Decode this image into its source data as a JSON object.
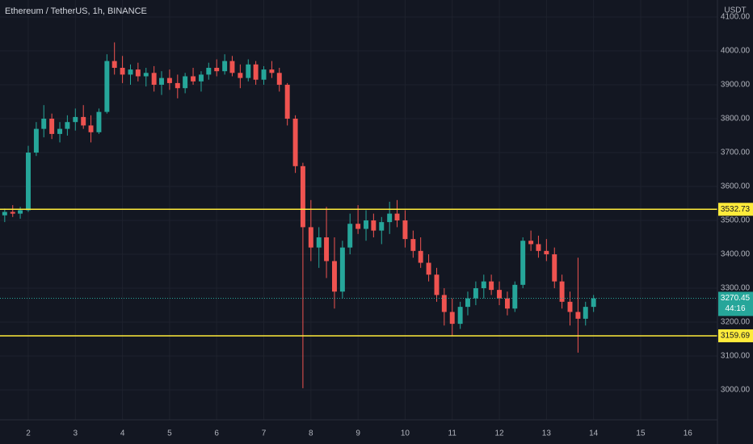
{
  "chart_data": {
    "type": "candlestick",
    "title": "Ethereum / TetherUS, 1h, BINANCE",
    "y_axis_label": "USDT",
    "x": [
      1.5,
      1.67,
      1.83,
      2,
      2.17,
      2.33,
      2.5,
      2.67,
      2.83,
      3,
      3.17,
      3.33,
      3.5,
      3.67,
      3.83,
      4,
      4.17,
      4.33,
      4.5,
      4.67,
      4.83,
      5,
      5.17,
      5.33,
      5.5,
      5.67,
      5.83,
      6,
      6.17,
      6.33,
      6.5,
      6.67,
      6.83,
      7,
      7.17,
      7.33,
      7.5,
      7.67,
      7.83,
      8,
      8.17,
      8.33,
      8.5,
      8.67,
      8.83,
      9,
      9.17,
      9.33,
      9.5,
      9.67,
      9.83,
      10,
      10.17,
      10.33,
      10.5,
      10.67,
      10.83,
      11,
      11.17,
      11.33,
      11.5,
      11.67,
      11.83,
      12,
      12.17,
      12.33,
      12.5,
      12.67,
      12.83,
      13,
      13.17,
      13.33,
      13.5,
      13.67,
      13.83,
      14
    ],
    "open": [
      3515,
      3525,
      3520,
      3530,
      3700,
      3770,
      3800,
      3755,
      3770,
      3790,
      3805,
      3780,
      3760,
      3820,
      3970,
      3950,
      3930,
      3945,
      3925,
      3935,
      3900,
      3920,
      3905,
      3890,
      3925,
      3910,
      3930,
      3950,
      3940,
      3970,
      3935,
      3920,
      3960,
      3915,
      3945,
      3935,
      3900,
      3800,
      3660,
      3480,
      3420,
      3450,
      3380,
      3290,
      3420,
      3490,
      3475,
      3500,
      3470,
      3495,
      3520,
      3500,
      3445,
      3410,
      3375,
      3340,
      3280,
      3230,
      3195,
      3245,
      3270,
      3300,
      3320,
      3295,
      3270,
      3240,
      3310,
      3440,
      3430,
      3410,
      3400,
      3320,
      3260,
      3230,
      3210,
      3245
    ],
    "high": [
      3535,
      3545,
      3540,
      3720,
      3790,
      3840,
      3815,
      3790,
      3810,
      3830,
      3840,
      3810,
      3830,
      3990,
      4025,
      3985,
      3960,
      3965,
      3950,
      3955,
      3940,
      3945,
      3930,
      3935,
      3950,
      3940,
      3965,
      3975,
      3990,
      3985,
      3960,
      3975,
      3970,
      3955,
      3970,
      3950,
      3905,
      3810,
      3670,
      3560,
      3480,
      3540,
      3450,
      3440,
      3520,
      3545,
      3530,
      3520,
      3510,
      3555,
      3560,
      3530,
      3470,
      3450,
      3400,
      3360,
      3300,
      3270,
      3260,
      3290,
      3320,
      3340,
      3340,
      3320,
      3290,
      3320,
      3450,
      3470,
      3455,
      3445,
      3420,
      3340,
      3290,
      3390,
      3260,
      3280
    ],
    "low": [
      3495,
      3510,
      3505,
      3525,
      3690,
      3745,
      3740,
      3730,
      3750,
      3765,
      3770,
      3730,
      3755,
      3815,
      3930,
      3905,
      3900,
      3910,
      3895,
      3880,
      3870,
      3885,
      3860,
      3875,
      3900,
      3880,
      3915,
      3925,
      3930,
      3925,
      3890,
      3910,
      3900,
      3900,
      3920,
      3880,
      3780,
      3640,
      3005,
      3380,
      3360,
      3330,
      3240,
      3270,
      3400,
      3460,
      3440,
      3450,
      3430,
      3460,
      3480,
      3420,
      3390,
      3360,
      3320,
      3260,
      3190,
      3160,
      3180,
      3220,
      3250,
      3270,
      3280,
      3250,
      3220,
      3230,
      3300,
      3410,
      3390,
      3380,
      3300,
      3240,
      3190,
      3110,
      3190,
      3230
    ],
    "close": [
      3525,
      3520,
      3530,
      3700,
      3770,
      3800,
      3755,
      3770,
      3790,
      3805,
      3780,
      3760,
      3820,
      3970,
      3950,
      3930,
      3945,
      3925,
      3935,
      3900,
      3920,
      3905,
      3890,
      3925,
      3910,
      3930,
      3950,
      3940,
      3970,
      3935,
      3920,
      3960,
      3915,
      3945,
      3935,
      3900,
      3800,
      3660,
      3480,
      3420,
      3450,
      3380,
      3290,
      3420,
      3490,
      3475,
      3500,
      3470,
      3495,
      3520,
      3500,
      3445,
      3410,
      3375,
      3340,
      3280,
      3230,
      3195,
      3245,
      3270,
      3300,
      3320,
      3295,
      3270,
      3240,
      3310,
      3440,
      3430,
      3410,
      3400,
      3320,
      3260,
      3230,
      3210,
      3245,
      3270
    ],
    "up_color": "#26a69a",
    "down_color": "#ef5350",
    "xlim": [
      1.4,
      16.63
    ],
    "xticks": [
      2,
      3,
      4,
      5,
      6,
      7,
      8,
      9,
      10,
      11,
      12,
      13,
      14,
      15,
      16
    ],
    "ylim": [
      2912,
      4150
    ],
    "yticks": [
      {
        "value": 3000,
        "label": "3000.00"
      },
      {
        "value": 3100,
        "label": "3100.00"
      },
      {
        "value": 3200,
        "label": "3200.00"
      },
      {
        "value": 3300,
        "label": "3300.00"
      },
      {
        "value": 3400,
        "label": "3400.00"
      },
      {
        "value": 3500,
        "label": "3500.00"
      },
      {
        "value": 3600,
        "label": "3600.00"
      },
      {
        "value": 3700,
        "label": "3700.00"
      },
      {
        "value": 3800,
        "label": "3800.00"
      },
      {
        "value": 3900,
        "label": "3900.00"
      },
      {
        "value": 4000,
        "label": "4000.00"
      },
      {
        "value": 4100,
        "label": "4100.00"
      }
    ],
    "grid": true,
    "horizontal_lines": [
      {
        "value": 3532.73,
        "color": "#ffeb3b"
      },
      {
        "value": 3159.69,
        "color": "#ffeb3b"
      }
    ],
    "last_price": {
      "value": 3270.45,
      "countdown": "44:16",
      "color": "#26a69a"
    }
  }
}
